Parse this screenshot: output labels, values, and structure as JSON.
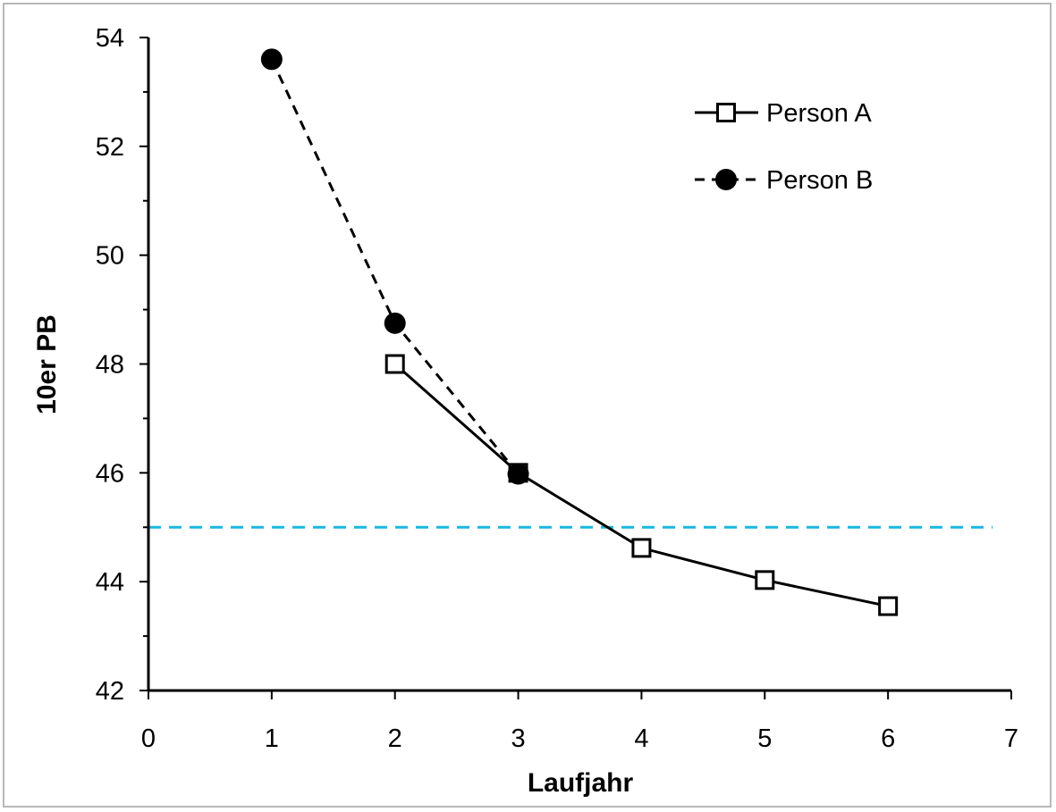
{
  "chart_data": {
    "type": "line",
    "title": "",
    "xlabel": "Laufjahr",
    "ylabel": "10er PB",
    "xlim": [
      0,
      7
    ],
    "ylim": [
      42,
      54
    ],
    "xticks": [
      0,
      1,
      2,
      3,
      4,
      5,
      6,
      7
    ],
    "yticks": [
      42,
      44,
      46,
      48,
      50,
      52,
      54
    ],
    "grid": false,
    "legend_position": "top-right",
    "series": [
      {
        "name": "Person A",
        "x": [
          2,
          3,
          4,
          5,
          6
        ],
        "y": [
          48.0,
          46.0,
          44.62,
          44.03,
          43.55
        ],
        "line": "solid",
        "marker": "open-square",
        "color": "#000000"
      },
      {
        "name": "Person B",
        "x": [
          1,
          2,
          3
        ],
        "y": [
          53.6,
          48.75,
          45.98
        ],
        "line": "dashed",
        "marker": "filled-circle",
        "color": "#000000"
      }
    ],
    "reference_line": {
      "y": 45,
      "style": "dashed",
      "color": "#1ab8e0"
    }
  }
}
